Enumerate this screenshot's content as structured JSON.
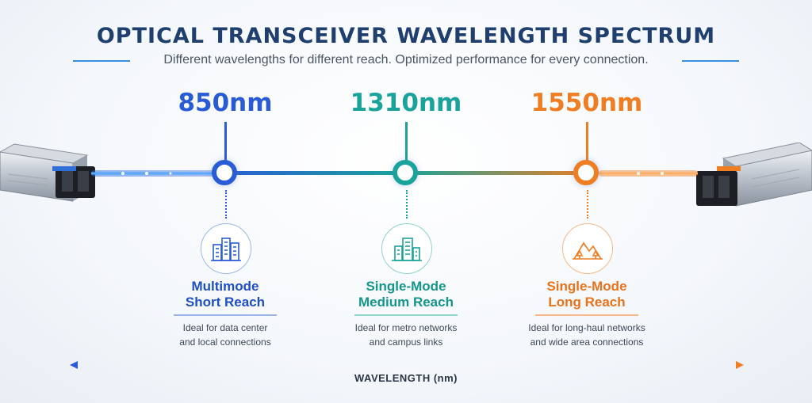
{
  "title": "OPTICAL TRANSCEIVER WAVELENGTH SPECTRUM",
  "subtitle": "Different wavelengths for different reach. Optimized performance for every connection.",
  "colors": {
    "blue": "#2a5bd7",
    "teal": "#1aa39a",
    "orange": "#ef7d22",
    "navy": "#1f3f6e"
  },
  "wavelengths": [
    {
      "value": "850nm",
      "icon": "office-buildings-icon",
      "label_line1": "Multimode",
      "label_line2": "Short Reach",
      "desc_line1": "Ideal for data center",
      "desc_line2": "and local connections"
    },
    {
      "value": "1310nm",
      "icon": "city-buildings-icon",
      "label_line1": "Single-Mode",
      "label_line2": "Medium Reach",
      "desc_line1": "Ideal for metro networks",
      "desc_line2": "and campus links"
    },
    {
      "value": "1550nm",
      "icon": "mountain-landscape-icon",
      "label_line1": "Single-Mode",
      "label_line2": "Long Reach",
      "desc_line1": "Ideal for long-haul networks",
      "desc_line2": "and wide area connections"
    }
  ],
  "axis_label": "WAVELENGTH (nm)"
}
